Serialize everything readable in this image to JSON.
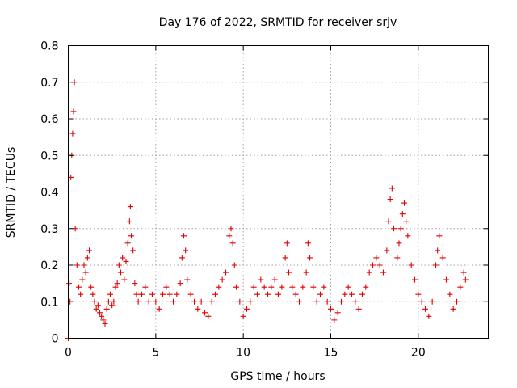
{
  "chart_data": {
    "type": "scatter",
    "title": "Day 176 of 2022, SRMTID for receiver srjv",
    "xlabel": "GPS time / hours",
    "ylabel": "SRMTID / TECUs",
    "xlim": [
      0,
      24
    ],
    "ylim": [
      0,
      0.8
    ],
    "xticks": [
      0,
      5,
      10,
      15,
      20
    ],
    "xtick_labels": [
      "0",
      "5",
      "10",
      "15",
      "20"
    ],
    "yticks": [
      0,
      0.1,
      0.2,
      0.3,
      0.4,
      0.5,
      0.6,
      0.7,
      0.8
    ],
    "ytick_labels": [
      "0",
      "0.1",
      "0.2",
      "0.3",
      "0.4",
      "0.5",
      "0.6",
      "0.7",
      "0.8"
    ],
    "grid": true,
    "marker": "+",
    "series": [
      {
        "name": "SRMTID",
        "color": "#e00000",
        "x": [
          0.0,
          0.05,
          0.1,
          0.15,
          0.2,
          0.25,
          0.3,
          0.35,
          0.4,
          0.5,
          0.6,
          0.7,
          0.8,
          0.9,
          1.0,
          1.1,
          1.2,
          1.3,
          1.4,
          1.5,
          1.6,
          1.7,
          1.8,
          1.9,
          2.0,
          2.1,
          2.2,
          2.3,
          2.4,
          2.5,
          2.6,
          2.7,
          2.8,
          2.9,
          3.0,
          3.1,
          3.2,
          3.3,
          3.4,
          3.5,
          3.55,
          3.6,
          3.7,
          3.8,
          3.9,
          4.0,
          4.2,
          4.4,
          4.6,
          4.8,
          5.0,
          5.2,
          5.4,
          5.6,
          5.8,
          6.0,
          6.2,
          6.4,
          6.5,
          6.6,
          6.7,
          6.8,
          7.0,
          7.2,
          7.4,
          7.6,
          7.8,
          8.0,
          8.2,
          8.4,
          8.6,
          8.8,
          9.0,
          9.2,
          9.3,
          9.4,
          9.5,
          9.6,
          9.8,
          10.0,
          10.2,
          10.4,
          10.6,
          10.8,
          11.0,
          11.2,
          11.4,
          11.6,
          11.8,
          12.0,
          12.2,
          12.4,
          12.5,
          12.6,
          12.8,
          13.0,
          13.2,
          13.4,
          13.6,
          13.7,
          13.8,
          14.0,
          14.2,
          14.4,
          14.6,
          14.8,
          15.0,
          15.2,
          15.4,
          15.6,
          15.8,
          16.0,
          16.2,
          16.4,
          16.6,
          16.8,
          17.0,
          17.2,
          17.4,
          17.6,
          17.8,
          18.0,
          18.2,
          18.3,
          18.4,
          18.5,
          18.6,
          18.8,
          18.9,
          19.0,
          19.1,
          19.2,
          19.3,
          19.4,
          19.6,
          19.8,
          20.0,
          20.2,
          20.4,
          20.6,
          20.8,
          21.0,
          21.1,
          21.2,
          21.4,
          21.6,
          21.8,
          22.0,
          22.2,
          22.4,
          22.6,
          22.7
        ],
        "y": [
          0.0,
          0.15,
          0.1,
          0.44,
          0.5,
          0.56,
          0.62,
          0.7,
          0.3,
          0.2,
          0.14,
          0.12,
          0.16,
          0.2,
          0.18,
          0.22,
          0.24,
          0.14,
          0.12,
          0.1,
          0.08,
          0.09,
          0.07,
          0.06,
          0.05,
          0.04,
          0.08,
          0.1,
          0.12,
          0.09,
          0.1,
          0.14,
          0.15,
          0.2,
          0.18,
          0.22,
          0.16,
          0.21,
          0.26,
          0.32,
          0.36,
          0.28,
          0.24,
          0.15,
          0.12,
          0.1,
          0.12,
          0.14,
          0.1,
          0.12,
          0.1,
          0.08,
          0.12,
          0.14,
          0.12,
          0.1,
          0.12,
          0.15,
          0.22,
          0.28,
          0.24,
          0.16,
          0.12,
          0.1,
          0.08,
          0.1,
          0.07,
          0.06,
          0.1,
          0.12,
          0.14,
          0.16,
          0.18,
          0.28,
          0.3,
          0.26,
          0.2,
          0.14,
          0.1,
          0.06,
          0.08,
          0.1,
          0.14,
          0.12,
          0.16,
          0.14,
          0.12,
          0.14,
          0.16,
          0.12,
          0.14,
          0.22,
          0.26,
          0.18,
          0.14,
          0.12,
          0.1,
          0.14,
          0.18,
          0.26,
          0.22,
          0.14,
          0.1,
          0.12,
          0.14,
          0.1,
          0.08,
          0.05,
          0.07,
          0.1,
          0.12,
          0.14,
          0.12,
          0.1,
          0.08,
          0.12,
          0.14,
          0.18,
          0.2,
          0.22,
          0.2,
          0.18,
          0.24,
          0.32,
          0.38,
          0.41,
          0.3,
          0.22,
          0.26,
          0.3,
          0.34,
          0.37,
          0.32,
          0.28,
          0.2,
          0.16,
          0.12,
          0.1,
          0.08,
          0.06,
          0.1,
          0.2,
          0.24,
          0.28,
          0.22,
          0.16,
          0.12,
          0.08,
          0.1,
          0.14,
          0.18,
          0.16
        ]
      }
    ]
  }
}
